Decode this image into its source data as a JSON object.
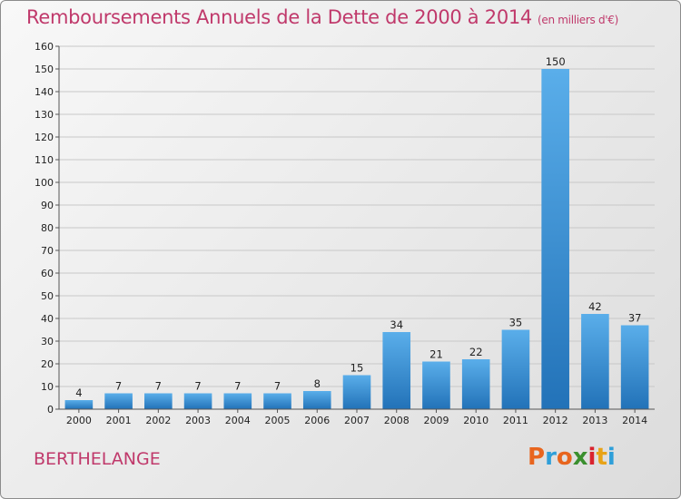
{
  "title": "Remboursements Annuels de la Dette de 2000 à 2014",
  "subtitle": "(en milliers d'€)",
  "commune": "BERTHELANGE",
  "logo": {
    "letters": [
      "P",
      "r",
      "o",
      "x",
      "i",
      "t",
      "i"
    ],
    "colors": [
      "#e8651e",
      "#2f9fd9",
      "#e8651e",
      "#3a8f2e",
      "#d9232e",
      "#e8a317",
      "#2f9fd9"
    ]
  },
  "colors": {
    "title": "#c0396b",
    "bar_top": "#5aaeea",
    "bar_bottom": "#2272b8",
    "grid": "#c8c8c8"
  },
  "chart_data": {
    "type": "bar",
    "title": "Remboursements Annuels de la Dette de 2000 à 2014",
    "ylabel": "en milliers d'€",
    "xlabel": "",
    "categories": [
      "2000",
      "2001",
      "2002",
      "2003",
      "2004",
      "2005",
      "2006",
      "2007",
      "2008",
      "2009",
      "2010",
      "2011",
      "2012",
      "2013",
      "2014"
    ],
    "values": [
      4,
      7,
      7,
      7,
      7,
      7,
      8,
      15,
      34,
      21,
      22,
      35,
      150,
      42,
      37
    ],
    "ylim": [
      0,
      160
    ],
    "yticks": [
      0,
      10,
      20,
      30,
      40,
      50,
      60,
      70,
      80,
      90,
      100,
      110,
      120,
      130,
      140,
      150,
      160
    ],
    "grid": true
  }
}
